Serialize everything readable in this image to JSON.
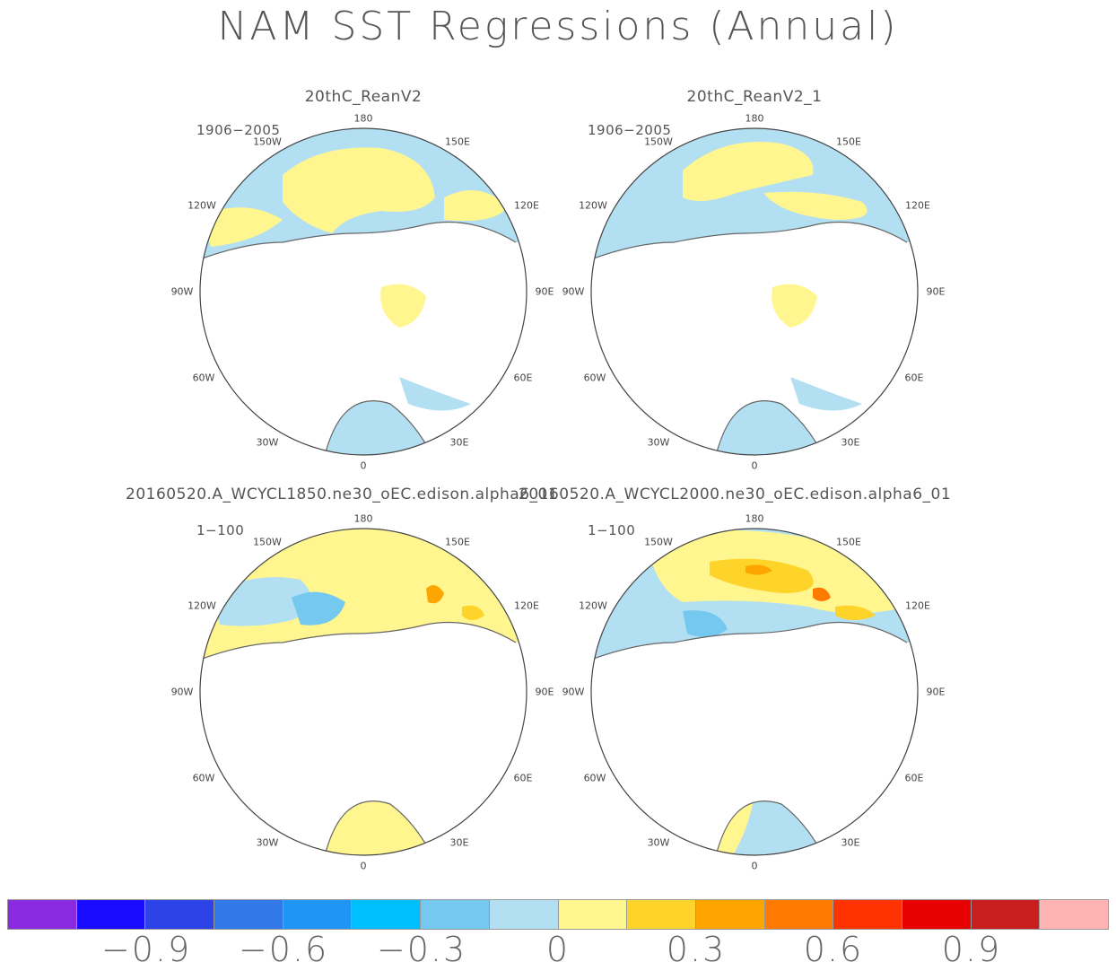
{
  "title": "NAM SST Regressions (Annual)",
  "panels": [
    {
      "name": "20thC_ReanV2",
      "period": "1906−2005"
    },
    {
      "name": "20thC_ReanV2_1",
      "period": "1906−2005"
    },
    {
      "name": "20160520.A_WCYCL1850.ne30_oEC.edison.alpha6_01",
      "period": "1−100"
    },
    {
      "name": "20160520.A_WCYCL2000.ne30_oEC.edison.alpha6_01",
      "period": "1−100"
    }
  ],
  "lon_labels": {
    "l180": "180",
    "l150e": "150E",
    "l120e": "120E",
    "l90e": "90E",
    "l60e": "60E",
    "l30e": "30E",
    "l0": "0",
    "l30w": "30W",
    "l60w": "60W",
    "l90w": "90W",
    "l120w": "120W",
    "l150w": "150W"
  },
  "colorbar": {
    "colors": [
      "#8a2be2",
      "#1a0cff",
      "#2c43e8",
      "#3378e8",
      "#1f96f5",
      "#00bfff",
      "#75c9f0",
      "#b3dff2",
      "#fff68f",
      "#ffd42a",
      "#ffa500",
      "#ff7a00",
      "#ff3300",
      "#e60000",
      "#c81e1e",
      "#ffb3b3"
    ],
    "ticks": [
      "−0.9",
      "−0.6",
      "−0.3",
      "0",
      "0.3",
      "0.6",
      "0.9"
    ]
  },
  "colors": {
    "land": "#ffffff",
    "coast": "#666666",
    "pos": "#fff68f",
    "neg": "#b3dff2"
  }
}
